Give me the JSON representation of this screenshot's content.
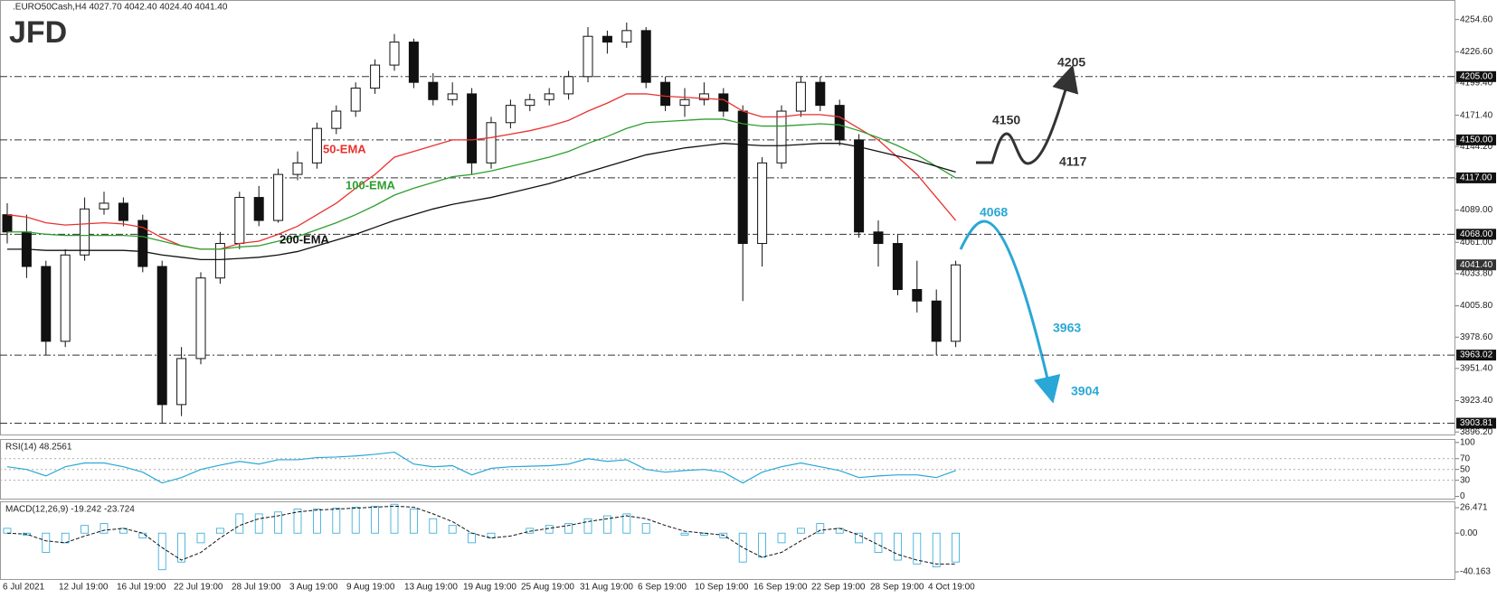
{
  "logo": "JFD",
  "x_axis_labels": [
    "6 Jul 2021",
    "12 Jul 19:00",
    "16 Jul 19:00",
    "22 Jul 19:00",
    "28 Jul 19:00",
    "3 Aug 19:00",
    "9 Aug 19:00",
    "13 Aug 19:00",
    "19 Aug 19:00",
    "25 Aug 19:00",
    "31 Aug 19:00",
    "6 Sep 19:00",
    "10 Sep 19:00",
    "16 Sep 19:00",
    "22 Sep 19:00",
    "28 Sep 19:00",
    "4 Oct 19:00"
  ],
  "chart_data": [
    {
      "type": "candlestick",
      "title": ".EURO50Cash,H4  4027.70 4042.40 4024.40 4041.40",
      "ylim": [
        3894,
        4270
      ],
      "yticks": [
        {
          "value": 4254.6,
          "label": "4254.60"
        },
        {
          "value": 4226.6,
          "label": "4226.60"
        },
        {
          "value": 4199.4,
          "label": "4199.40"
        },
        {
          "value": 4171.4,
          "label": "4171.40"
        },
        {
          "value": 4144.2,
          "label": "4144.20"
        },
        {
          "value": 4116.2,
          "label": "4116.20"
        },
        {
          "value": 4089,
          "label": "4089.00"
        },
        {
          "value": 4061,
          "label": "4061.00"
        },
        {
          "value": 4033.8,
          "label": "4033.80"
        },
        {
          "value": 4005.8,
          "label": "4005.80"
        },
        {
          "value": 3978.6,
          "label": "3978.60"
        },
        {
          "value": 3951.4,
          "label": "3951.40"
        },
        {
          "value": 3923.4,
          "label": "3923.40"
        },
        {
          "value": 3896.2,
          "label": "3896.20"
        }
      ],
      "open": [
        4085,
        4070,
        4040,
        3975,
        4050,
        4090,
        4095,
        4080,
        4040,
        3920,
        3960,
        4030,
        4060,
        4100,
        4080,
        4120,
        4130,
        4160,
        4175,
        4195,
        4215,
        4235,
        4200,
        4185,
        4190,
        4130,
        4165,
        4180,
        4185,
        4190,
        4205,
        4240,
        4235,
        4245,
        4200,
        4180,
        4185,
        4190,
        4175,
        4060,
        4130,
        4175,
        4200,
        4180,
        4150,
        4070,
        4060,
        4020,
        4010,
        3975
      ],
      "high": [
        4095,
        4085,
        4045,
        4055,
        4100,
        4105,
        4100,
        4085,
        4045,
        3970,
        4035,
        4070,
        4105,
        4110,
        4125,
        4140,
        4165,
        4180,
        4200,
        4220,
        4242,
        4238,
        4208,
        4200,
        4195,
        4170,
        4185,
        4190,
        4195,
        4210,
        4248,
        4245,
        4252,
        4248,
        4205,
        4195,
        4200,
        4195,
        4180,
        4135,
        4180,
        4205,
        4205,
        4185,
        4155,
        4080,
        4068,
        4045,
        4020,
        4045
      ],
      "low": [
        4060,
        4030,
        3963,
        3970,
        4045,
        4085,
        4075,
        4035,
        3904,
        3910,
        3955,
        4025,
        4055,
        4075,
        4078,
        4115,
        4125,
        4155,
        4170,
        4190,
        4210,
        4195,
        4180,
        4180,
        4120,
        4125,
        4160,
        4175,
        4180,
        4185,
        4200,
        4225,
        4230,
        4195,
        4175,
        4170,
        4180,
        4170,
        4010,
        4040,
        4125,
        4170,
        4175,
        4145,
        4065,
        4040,
        4015,
        4000,
        3963,
        3970
      ],
      "close": [
        4070,
        4040,
        3975,
        4050,
        4090,
        4095,
        4080,
        4040,
        3920,
        3960,
        4030,
        4060,
        4100,
        4080,
        4120,
        4130,
        4160,
        4175,
        4195,
        4215,
        4235,
        4200,
        4185,
        4190,
        4130,
        4165,
        4180,
        4185,
        4190,
        4205,
        4240,
        4235,
        4245,
        4200,
        4180,
        4185,
        4190,
        4175,
        4060,
        4130,
        4175,
        4200,
        4180,
        4150,
        4070,
        4060,
        4020,
        4010,
        3975,
        4041.4
      ],
      "series": [
        {
          "name": "50-EMA",
          "color": "#e8322f",
          "values": [
            4085,
            4083,
            4078,
            4076,
            4077,
            4078,
            4077,
            4074,
            4065,
            4058,
            4055,
            4055,
            4060,
            4062,
            4068,
            4075,
            4085,
            4095,
            4108,
            4120,
            4135,
            4140,
            4145,
            4150,
            4150,
            4152,
            4155,
            4158,
            4162,
            4167,
            4175,
            4182,
            4190,
            4190,
            4188,
            4187,
            4186,
            4185,
            4175,
            4170,
            4170,
            4172,
            4172,
            4170,
            4160,
            4150,
            4135,
            4120,
            4100,
            4080
          ]
        },
        {
          "name": "100-EMA",
          "color": "#2e9e2e",
          "values": [
            4070,
            4070,
            4068,
            4067,
            4067,
            4067,
            4067,
            4066,
            4062,
            4058,
            4055,
            4055,
            4057,
            4058,
            4062,
            4066,
            4072,
            4078,
            4085,
            4093,
            4102,
            4108,
            4113,
            4118,
            4120,
            4123,
            4127,
            4131,
            4135,
            4140,
            4147,
            4153,
            4160,
            4165,
            4166,
            4167,
            4168,
            4168,
            4164,
            4162,
            4162,
            4163,
            4164,
            4163,
            4158,
            4152,
            4145,
            4137,
            4127,
            4117
          ]
        },
        {
          "name": "200-EMA",
          "color": "#111111",
          "values": [
            4055,
            4055,
            4054,
            4054,
            4054,
            4054,
            4054,
            4053,
            4050,
            4048,
            4046,
            4046,
            4047,
            4048,
            4050,
            4053,
            4058,
            4063,
            4068,
            4074,
            4080,
            4085,
            4090,
            4094,
            4097,
            4100,
            4104,
            4108,
            4112,
            4117,
            4122,
            4127,
            4132,
            4137,
            4140,
            4143,
            4145,
            4147,
            4146,
            4145,
            4145,
            4146,
            4147,
            4147,
            4144,
            4140,
            4136,
            4132,
            4127,
            4122
          ]
        }
      ],
      "levels": [
        {
          "value": 4205,
          "label": "4205.00"
        },
        {
          "value": 4150,
          "label": "4150.00"
        },
        {
          "value": 4117,
          "label": "4117.00"
        },
        {
          "value": 4068,
          "label": "4068.00"
        },
        3963.02,
        3903.81
      ],
      "last_price": {
        "value": 4041.4,
        "label": "4041.40"
      },
      "annotations": [
        {
          "label": 4205,
          "color": "#333333"
        },
        {
          "label": 4150,
          "color": "#333333"
        },
        {
          "label": 4117,
          "color": "#333333"
        },
        {
          "label": 4068,
          "color": "#29a7d6"
        },
        {
          "label": 3963,
          "color": "#29a7d6"
        },
        {
          "label": 3904,
          "color": "#29a7d6"
        }
      ]
    },
    {
      "type": "line",
      "title": "RSI(14) 48.2561",
      "color": "#29a7d6",
      "ylim": [
        -4,
        103
      ],
      "yticks": [
        100,
        70,
        50,
        30,
        0
      ],
      "levels": [
        70,
        50,
        30
      ],
      "values": [
        55,
        50,
        38,
        55,
        62,
        62,
        55,
        45,
        25,
        35,
        50,
        58,
        65,
        60,
        68,
        68,
        72,
        73,
        75,
        78,
        82,
        60,
        55,
        57,
        40,
        52,
        55,
        56,
        57,
        60,
        70,
        65,
        68,
        50,
        45,
        48,
        50,
        45,
        25,
        45,
        55,
        62,
        55,
        48,
        35,
        38,
        40,
        40,
        35,
        48
      ]
    },
    {
      "type": "macd",
      "title": "MACD(12,26,9) -19.242 -23.724",
      "color": "#29a7d6",
      "ylim": [
        -46.7,
        32.1
      ],
      "yticks": [
        26.471,
        {
          "value": 0,
          "label": "0.00"
        },
        -40.163
      ],
      "histogram": [
        5,
        -2,
        -20,
        -10,
        8,
        10,
        5,
        -5,
        -38,
        -30,
        -10,
        5,
        20,
        20,
        22,
        25,
        25,
        26,
        27,
        28,
        30,
        25,
        15,
        8,
        -10,
        -5,
        0,
        5,
        8,
        10,
        15,
        18,
        20,
        10,
        0,
        -2,
        -2,
        -5,
        -30,
        -25,
        -10,
        5,
        10,
        5,
        -10,
        -20,
        -28,
        -32,
        -35,
        -30
      ],
      "signal": [
        0,
        -1,
        -8,
        -10,
        -3,
        3,
        5,
        0,
        -15,
        -28,
        -20,
        -5,
        8,
        15,
        18,
        22,
        24,
        25,
        26,
        27,
        28,
        27,
        20,
        12,
        0,
        -5,
        -3,
        2,
        5,
        8,
        12,
        15,
        18,
        15,
        8,
        2,
        0,
        -2,
        -15,
        -25,
        -20,
        -8,
        3,
        5,
        -2,
        -12,
        -22,
        -28,
        -32,
        -32
      ]
    }
  ]
}
